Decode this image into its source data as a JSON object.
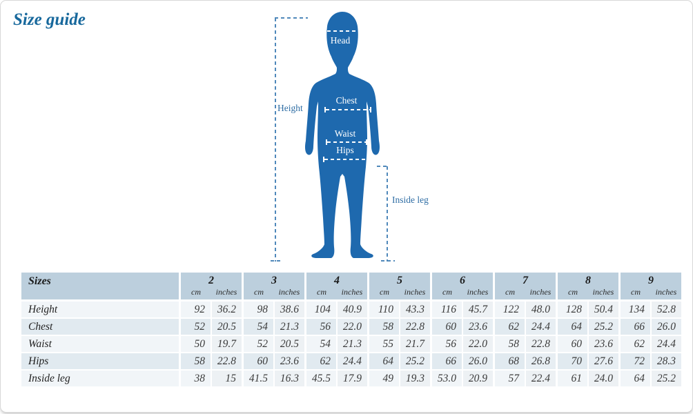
{
  "page": {
    "title": "Size guide"
  },
  "diagram": {
    "body_color": "#1e69ae",
    "guide_line_color": "#4f88ba",
    "guide_label_color": "#2e6da4",
    "labels": {
      "head": "Head",
      "chest": "Chest",
      "waist": "Waist",
      "hips": "Hips",
      "height": "Height",
      "inside_leg": "Inside leg"
    }
  },
  "table": {
    "header_label": "Sizes",
    "unit_cm": "cm",
    "unit_inches": "inches",
    "sizes": [
      "2",
      "3",
      "4",
      "5",
      "6",
      "7",
      "8",
      "9"
    ],
    "rows": [
      {
        "label": "Height",
        "values": [
          [
            "92",
            "36.2"
          ],
          [
            "98",
            "38.6"
          ],
          [
            "104",
            "40.9"
          ],
          [
            "110",
            "43.3"
          ],
          [
            "116",
            "45.7"
          ],
          [
            "122",
            "48.0"
          ],
          [
            "128",
            "50.4"
          ],
          [
            "134",
            "52.8"
          ]
        ]
      },
      {
        "label": "Chest",
        "values": [
          [
            "52",
            "20.5"
          ],
          [
            "54",
            "21.3"
          ],
          [
            "56",
            "22.0"
          ],
          [
            "58",
            "22.8"
          ],
          [
            "60",
            "23.6"
          ],
          [
            "62",
            "24.4"
          ],
          [
            "64",
            "25.2"
          ],
          [
            "66",
            "26.0"
          ]
        ]
      },
      {
        "label": "Waist",
        "values": [
          [
            "50",
            "19.7"
          ],
          [
            "52",
            "20.5"
          ],
          [
            "54",
            "21.3"
          ],
          [
            "55",
            "21.7"
          ],
          [
            "56",
            "22.0"
          ],
          [
            "58",
            "22.8"
          ],
          [
            "60",
            "23.6"
          ],
          [
            "62",
            "24.4"
          ]
        ]
      },
      {
        "label": "Hips",
        "values": [
          [
            "58",
            "22.8"
          ],
          [
            "60",
            "23.6"
          ],
          [
            "62",
            "24.4"
          ],
          [
            "64",
            "25.2"
          ],
          [
            "66",
            "26.0"
          ],
          [
            "68",
            "26.8"
          ],
          [
            "70",
            "27.6"
          ],
          [
            "72",
            "28.3"
          ]
        ]
      },
      {
        "label": "Inside leg",
        "values": [
          [
            "38",
            "15"
          ],
          [
            "41.5",
            "16.3"
          ],
          [
            "45.5",
            "17.9"
          ],
          [
            "49",
            "19.3"
          ],
          [
            "53.0",
            "20.9"
          ],
          [
            "57",
            "22.4"
          ],
          [
            "61",
            "24.0"
          ],
          [
            "64",
            "25.2"
          ]
        ]
      }
    ]
  }
}
